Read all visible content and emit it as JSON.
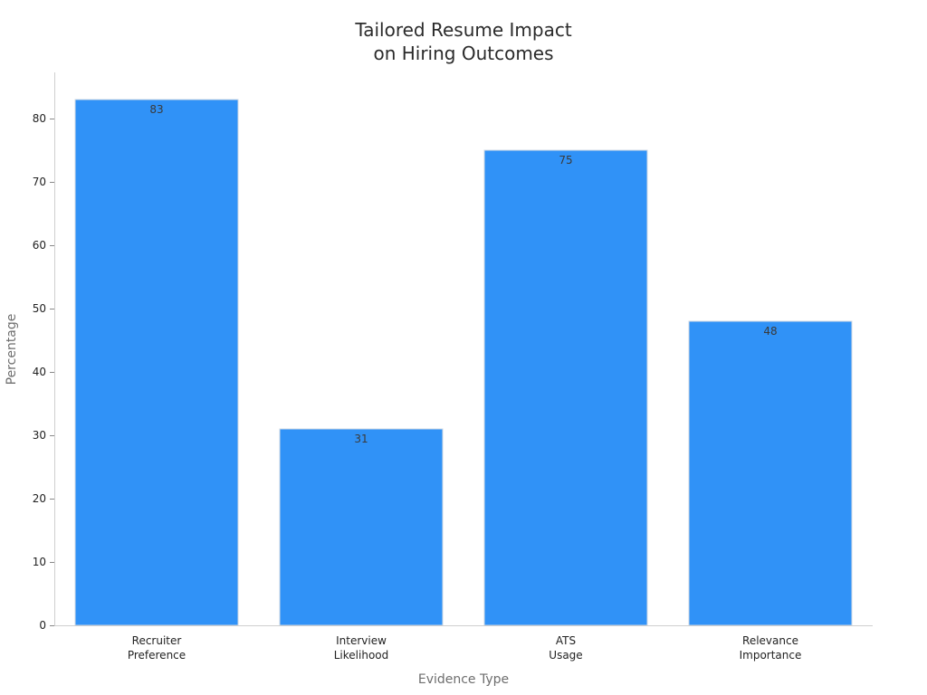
{
  "chart_data": {
    "type": "bar",
    "title": [
      "Tailored Resume Impact",
      "on Hiring Outcomes"
    ],
    "xlabel": "Evidence Type",
    "ylabel": "Percentage",
    "categories": [
      [
        "Recruiter",
        "Preference"
      ],
      [
        "Interview",
        "Likelihood"
      ],
      [
        "ATS",
        "Usage"
      ],
      [
        "Relevance",
        "Importance"
      ]
    ],
    "values": [
      83,
      31,
      75,
      48
    ],
    "data_labels": [
      "83",
      "31",
      "75",
      "48"
    ],
    "yticks": [
      0,
      10,
      20,
      30,
      40,
      50,
      60,
      70,
      80
    ],
    "ylim": [
      0,
      87.2
    ],
    "grid": false,
    "legend": "none",
    "bar_color": "#3092f7"
  }
}
